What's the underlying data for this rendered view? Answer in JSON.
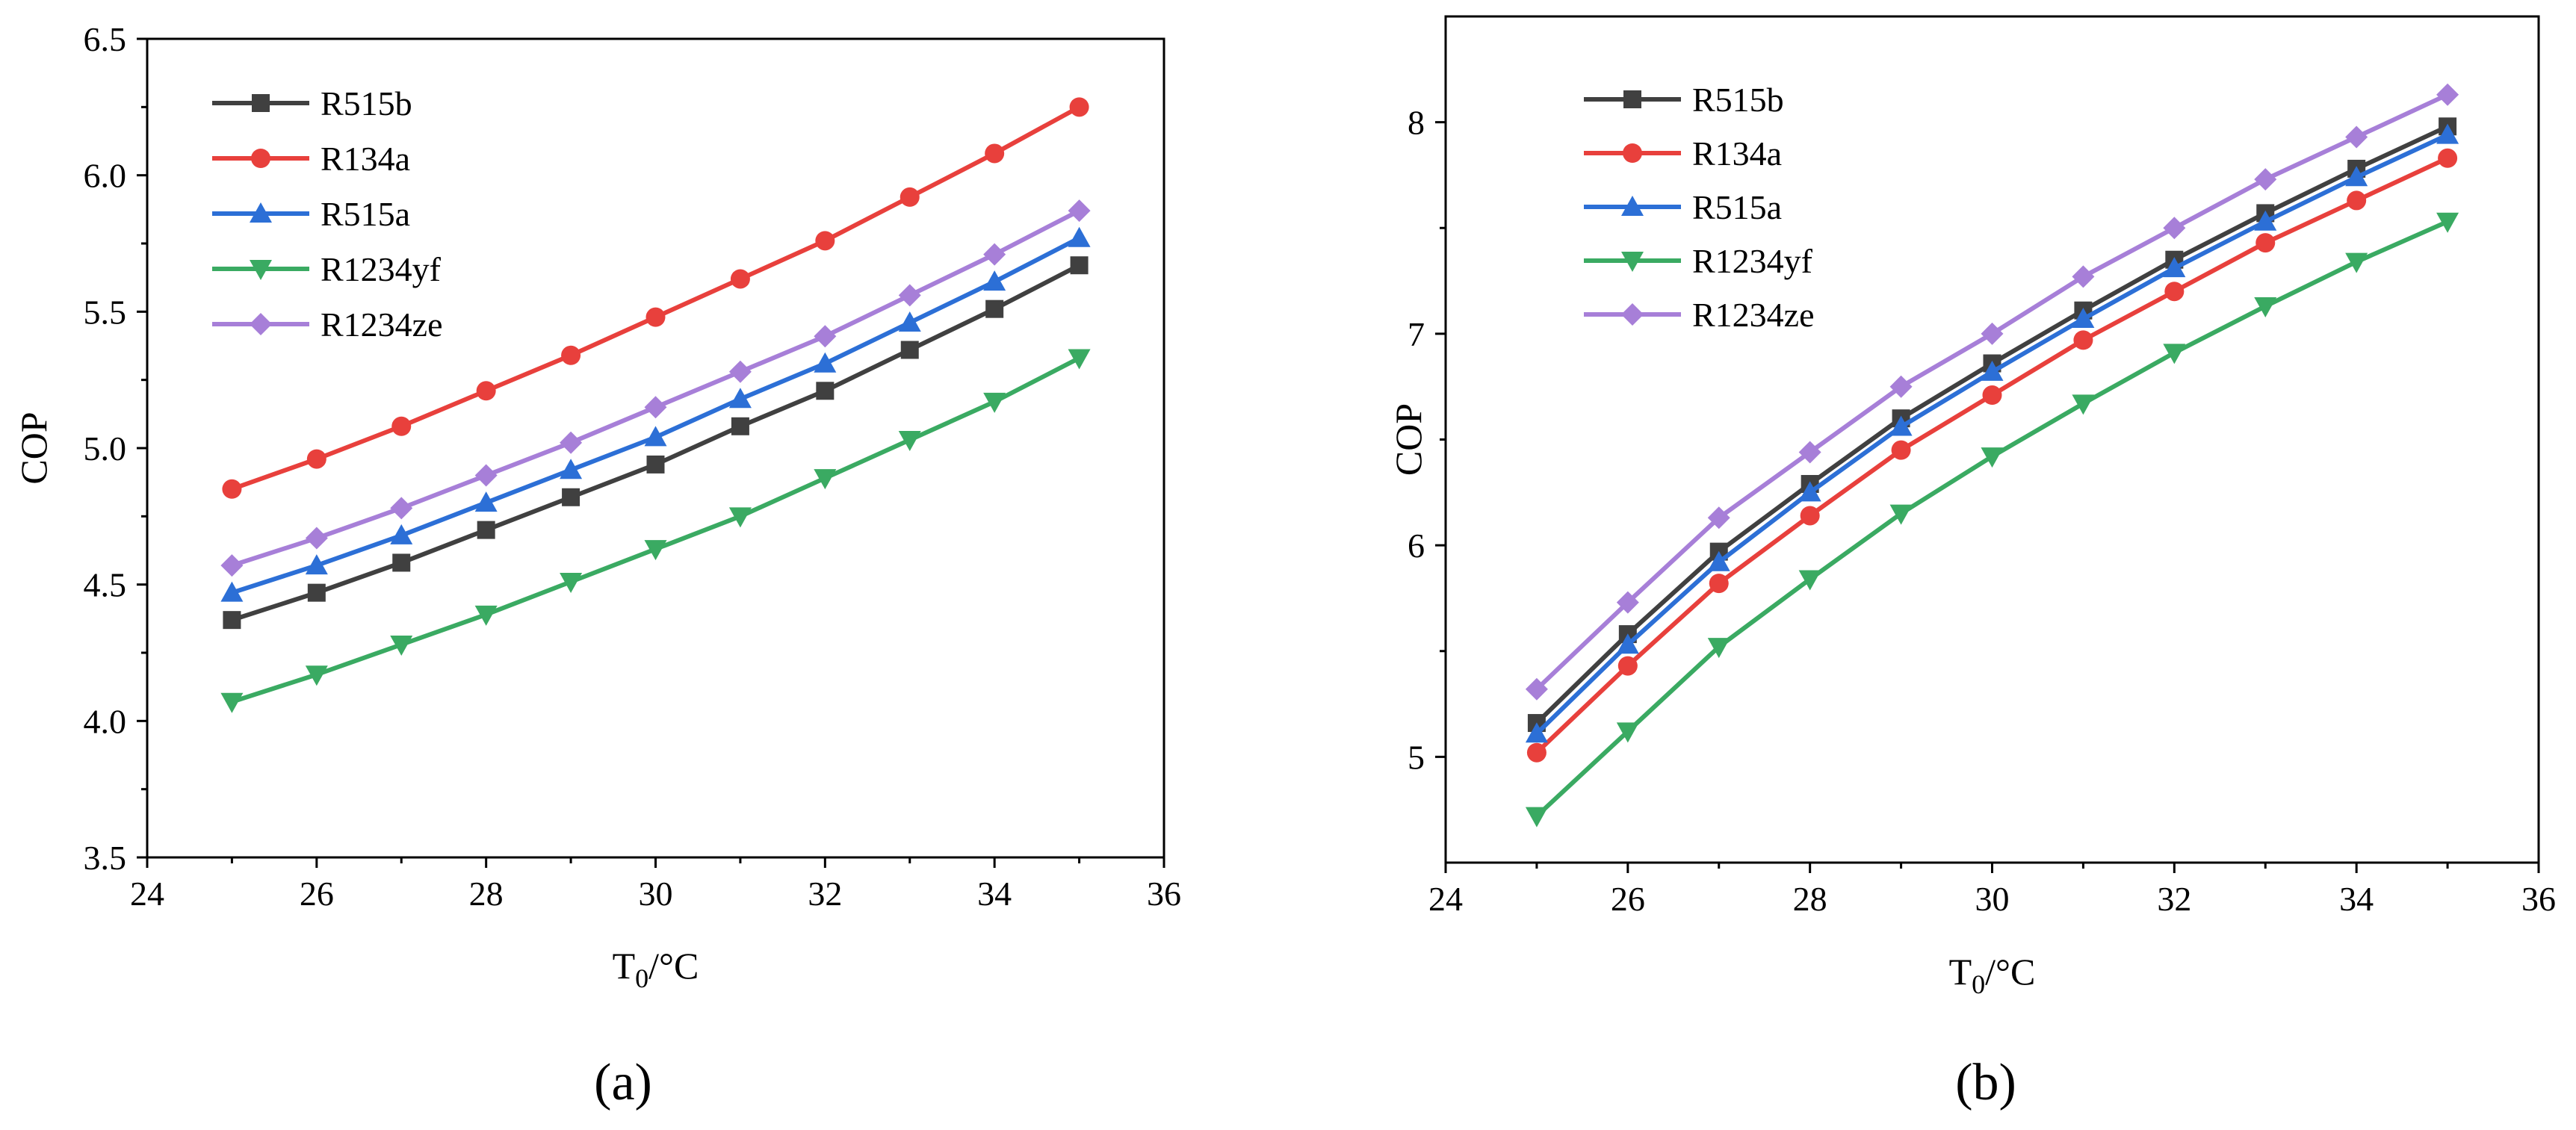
{
  "chart_data": [
    {
      "type": "line",
      "panel_label": "(a)",
      "xlabel_main": "T",
      "xlabel_sub": "0",
      "xlabel_unit": "/°C",
      "ylabel": "COP",
      "xlim": [
        24,
        36
      ],
      "ylim": [
        3.5,
        6.5
      ],
      "xticks": [
        24,
        26,
        28,
        30,
        32,
        34,
        36
      ],
      "yticks": [
        3.5,
        4.0,
        4.5,
        5.0,
        5.5,
        6.0,
        6.5
      ],
      "ytick_decimals": 1,
      "x": [
        25,
        26,
        27,
        28,
        29,
        30,
        31,
        32,
        33,
        34,
        35
      ],
      "legend_position": "top-left",
      "series": [
        {
          "name": "R515b",
          "color": "#404040",
          "marker": "square",
          "values": [
            4.37,
            4.47,
            4.58,
            4.7,
            4.82,
            4.94,
            5.08,
            5.21,
            5.36,
            5.51,
            5.67
          ]
        },
        {
          "name": "R134a",
          "color": "#e8403c",
          "marker": "circle",
          "values": [
            4.85,
            4.96,
            5.08,
            5.21,
            5.34,
            5.48,
            5.62,
            5.76,
            5.92,
            6.08,
            6.25
          ]
        },
        {
          "name": "R515a",
          "color": "#2c6fd6",
          "marker": "triangle-up",
          "values": [
            4.47,
            4.57,
            4.68,
            4.8,
            4.92,
            5.04,
            5.18,
            5.31,
            5.46,
            5.61,
            5.77
          ]
        },
        {
          "name": "R1234yf",
          "color": "#3aaa62",
          "marker": "triangle-down",
          "values": [
            4.07,
            4.17,
            4.28,
            4.39,
            4.51,
            4.63,
            4.75,
            4.89,
            5.03,
            5.17,
            5.33
          ]
        },
        {
          "name": "R1234ze",
          "color": "#a77fd8",
          "marker": "diamond",
          "values": [
            4.57,
            4.67,
            4.78,
            4.9,
            5.02,
            5.15,
            5.28,
            5.41,
            5.56,
            5.71,
            5.87
          ]
        }
      ]
    },
    {
      "type": "line",
      "panel_label": "(b)",
      "xlabel_main": "T",
      "xlabel_sub": "0",
      "xlabel_unit": "/°C",
      "ylabel": "COP",
      "xlim": [
        24,
        36
      ],
      "ylim": [
        4.5,
        8.5
      ],
      "xticks": [
        24,
        26,
        28,
        30,
        32,
        34,
        36
      ],
      "yticks": [
        5,
        6,
        7,
        8
      ],
      "ytick_decimals": 0,
      "x": [
        25,
        26,
        27,
        28,
        29,
        30,
        31,
        32,
        33,
        34,
        35
      ],
      "legend_position": "top-left",
      "series": [
        {
          "name": "R515b",
          "color": "#404040",
          "marker": "square",
          "values": [
            5.16,
            5.58,
            5.97,
            6.29,
            6.6,
            6.86,
            7.11,
            7.35,
            7.57,
            7.78,
            7.98
          ]
        },
        {
          "name": "R134a",
          "color": "#e8403c",
          "marker": "circle",
          "values": [
            5.02,
            5.43,
            5.82,
            6.14,
            6.45,
            6.71,
            6.97,
            7.2,
            7.43,
            7.63,
            7.83
          ]
        },
        {
          "name": "R515a",
          "color": "#2c6fd6",
          "marker": "triangle-up",
          "values": [
            5.11,
            5.53,
            5.92,
            6.25,
            6.56,
            6.82,
            7.07,
            7.31,
            7.53,
            7.74,
            7.94
          ]
        },
        {
          "name": "R1234yf",
          "color": "#3aaa62",
          "marker": "triangle-down",
          "values": [
            4.72,
            5.12,
            5.52,
            5.84,
            6.15,
            6.42,
            6.67,
            6.91,
            7.13,
            7.34,
            7.53
          ]
        },
        {
          "name": "R1234ze",
          "color": "#a77fd8",
          "marker": "diamond",
          "values": [
            5.32,
            5.73,
            6.13,
            6.44,
            6.75,
            7.0,
            7.27,
            7.5,
            7.73,
            7.93,
            8.13
          ]
        }
      ]
    }
  ]
}
